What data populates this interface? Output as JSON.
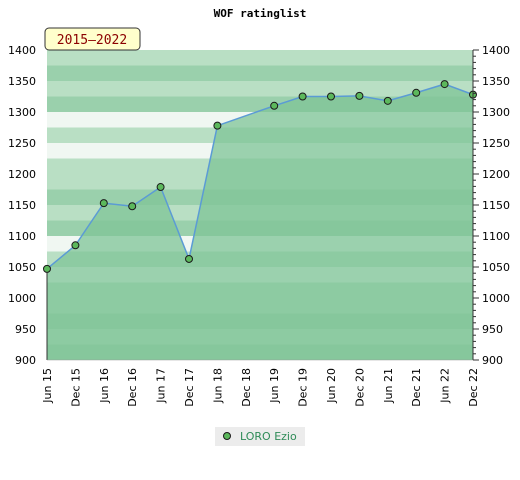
{
  "chart_data": {
    "type": "area",
    "title": "WOF ratinglist",
    "period_label": "2015–2022",
    "categories": [
      "Jun 15",
      "Dec 15",
      "Jun 16",
      "Dec 16",
      "Jun 17",
      "Dec 17",
      "Jun 18",
      "Dec 18",
      "Jun 19",
      "Dec 19",
      "Jun 20",
      "Dec 20",
      "Jun 21",
      "Dec 21",
      "Jun 22",
      "Dec 22"
    ],
    "series": [
      {
        "name": "LORO Ezio",
        "values": [
          1047,
          1085,
          1153,
          1148,
          1179,
          1063,
          1278,
          null,
          1310,
          1325,
          1325,
          1326,
          1318,
          1331,
          1345,
          1328
        ]
      }
    ],
    "ylim": [
      900,
      1400
    ],
    "yticks": [
      900,
      950,
      1000,
      1050,
      1100,
      1150,
      1200,
      1250,
      1300,
      1350,
      1400
    ],
    "grid": true,
    "legend_position": "bottom-center",
    "colors": {
      "line": "#5b9bd5",
      "marker_fill": "#5cb85c",
      "marker_stroke": "#1a1a1a",
      "area_fill": "#7fc497",
      "band_light": "#f0f7f2",
      "band_mid": "#b9dfc4",
      "band_dark": "#9ad0ac",
      "badge_bg": "#ffffcc",
      "badge_text": "#8b0000",
      "legend_text": "#2e8b57"
    }
  }
}
